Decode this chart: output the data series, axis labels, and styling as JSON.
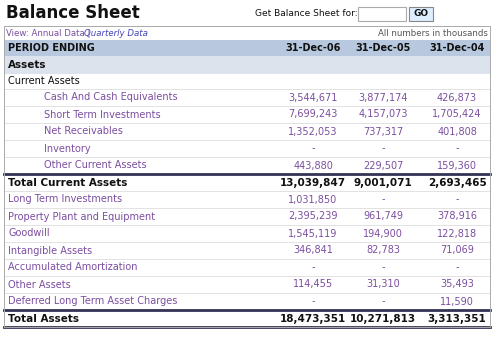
{
  "title": "Balance Sheet",
  "get_label": "Get Balance Sheet for:",
  "go_button": "GO",
  "all_numbers": "All numbers in thousands",
  "header_bg": "#b8c9df",
  "section_bg": "#dce3ed",
  "white_bg": "#ffffff",
  "link_color": "#6666bb",
  "purple_data": "#7b4ea0",
  "text_black": "#111111",
  "col_header": [
    "31-Dec-06",
    "31-Dec-05",
    "31-Dec-04"
  ],
  "rows": [
    {
      "label": "Assets",
      "v1": "",
      "v2": "",
      "v3": "",
      "style": "section",
      "indent": 0
    },
    {
      "label": "Current Assets",
      "v1": "",
      "v2": "",
      "v3": "",
      "style": "subsection",
      "indent": 0
    },
    {
      "label": "Cash And Cash Equivalents",
      "v1": "3,544,671",
      "v2": "3,877,174",
      "v3": "426,873",
      "style": "data",
      "indent": 1
    },
    {
      "label": "Short Term Investments",
      "v1": "7,699,243",
      "v2": "4,157,073",
      "v3": "1,705,424",
      "style": "data",
      "indent": 1
    },
    {
      "label": "Net Receivables",
      "v1": "1,352,053",
      "v2": "737,317",
      "v3": "401,808",
      "style": "data",
      "indent": 1
    },
    {
      "label": "Inventory",
      "v1": "-",
      "v2": "-",
      "v3": "-",
      "style": "data",
      "indent": 1
    },
    {
      "label": "Other Current Assets",
      "v1": "443,880",
      "v2": "229,507",
      "v3": "159,360",
      "style": "data",
      "indent": 1
    },
    {
      "label": "Total Current Assets",
      "v1": "13,039,847",
      "v2": "9,001,071",
      "v3": "2,693,465",
      "style": "total",
      "indent": 0
    },
    {
      "label": "Long Term Investments",
      "v1": "1,031,850",
      "v2": "-",
      "v3": "-",
      "style": "data",
      "indent": 0
    },
    {
      "label": "Property Plant and Equipment",
      "v1": "2,395,239",
      "v2": "961,749",
      "v3": "378,916",
      "style": "data",
      "indent": 0
    },
    {
      "label": "Goodwill",
      "v1": "1,545,119",
      "v2": "194,900",
      "v3": "122,818",
      "style": "data",
      "indent": 0
    },
    {
      "label": "Intangible Assets",
      "v1": "346,841",
      "v2": "82,783",
      "v3": "71,069",
      "style": "data",
      "indent": 0
    },
    {
      "label": "Accumulated Amortization",
      "v1": "-",
      "v2": "-",
      "v3": "-",
      "style": "data",
      "indent": 0
    },
    {
      "label": "Other Assets",
      "v1": "114,455",
      "v2": "31,310",
      "v3": "35,493",
      "style": "data",
      "indent": 0
    },
    {
      "label": "Deferred Long Term Asset Charges",
      "v1": "-",
      "v2": "-",
      "v3": "11,590",
      "style": "data",
      "indent": 0
    },
    {
      "label": "Total Assets",
      "v1": "18,473,351",
      "v2": "10,271,813",
      "v3": "3,313,351",
      "style": "total",
      "indent": 0
    }
  ]
}
